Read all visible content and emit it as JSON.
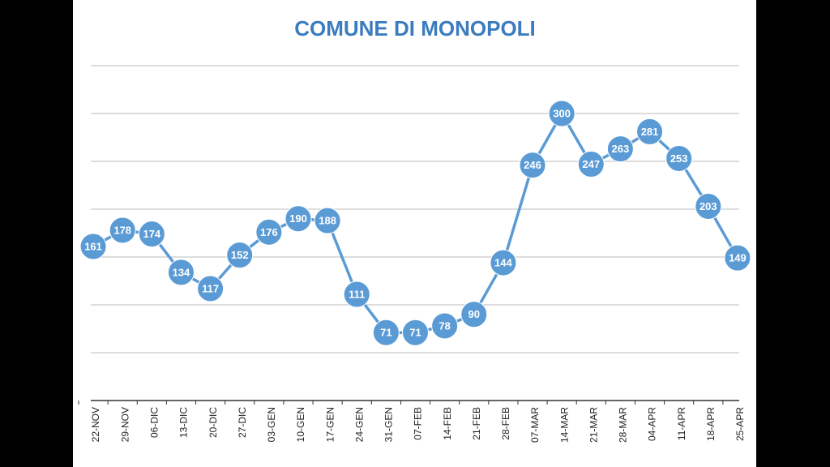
{
  "chart_data": {
    "type": "line",
    "title": "COMUNE DI MONOPOLI",
    "categories": [
      "22-NOV",
      "29-NOV",
      "06-DIC",
      "13-DIC",
      "20-DIC",
      "27-DIC",
      "03-GEN",
      "10-GEN",
      "17-GEN",
      "24-GEN",
      "31-GEN",
      "07-FEB",
      "14-FEB",
      "21-FEB",
      "28-FEB",
      "07-MAR",
      "14-MAR",
      "21-MAR",
      "28-MAR",
      "04-APR",
      "11-APR",
      "18-APR",
      "25-APR"
    ],
    "values": [
      161,
      178,
      174,
      134,
      117,
      152,
      176,
      190,
      188,
      111,
      71,
      71,
      78,
      90,
      144,
      246,
      300,
      247,
      263,
      281,
      253,
      203,
      149
    ],
    "color": "#5b9bd5",
    "ylim": [
      0,
      350
    ],
    "yticks": [
      0,
      50,
      100,
      150,
      200,
      250,
      300,
      350
    ],
    "grid": true
  }
}
